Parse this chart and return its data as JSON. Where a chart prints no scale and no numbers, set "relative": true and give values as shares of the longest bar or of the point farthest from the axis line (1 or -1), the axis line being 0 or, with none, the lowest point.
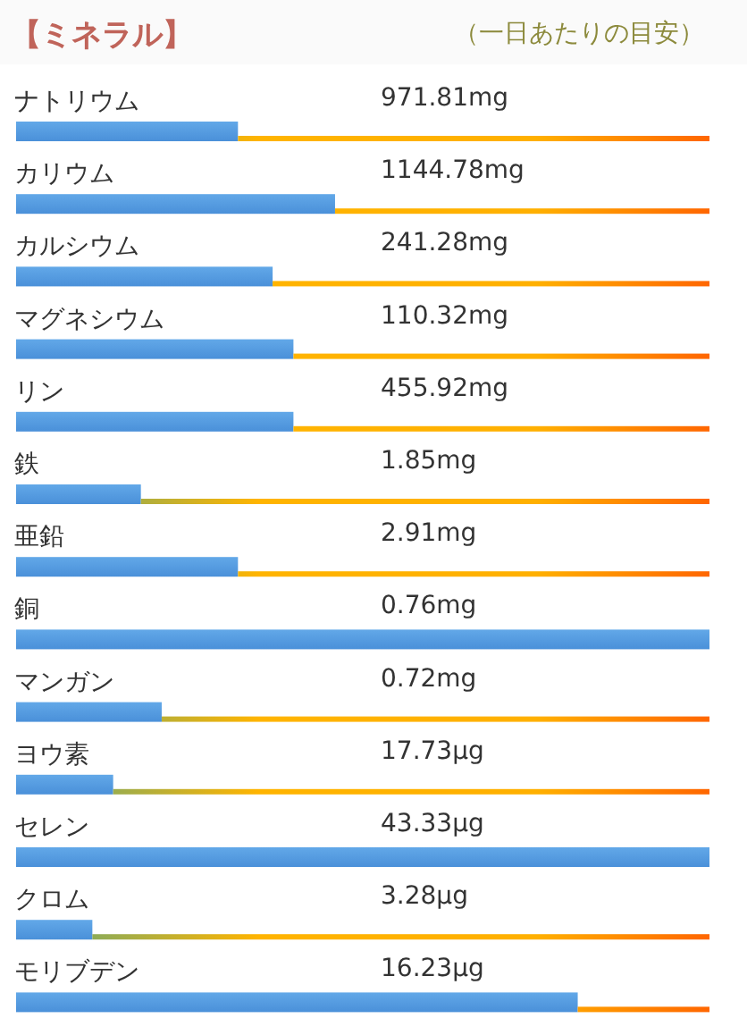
{
  "chart_data": {
    "type": "bar",
    "orientation": "horizontal",
    "stacked": true,
    "relative": true,
    "title": "【ミネラル】",
    "subtitle": "（一日あたりの目安）",
    "categories": [
      "ナトリウム",
      "カリウム",
      "カルシウム",
      "マグネシウム",
      "リン",
      "鉄",
      "亜鉛",
      "銅",
      "マンガン",
      "ヨウ素",
      "セレン",
      "クロム",
      "モリブデン"
    ],
    "series": [
      {
        "color": "#4a90d9",
        "values": [
          0.32,
          0.46,
          0.37,
          0.4,
          0.4,
          0.18,
          0.32,
          1,
          0.21,
          0.14,
          1,
          0.11,
          0.81
        ]
      },
      {
        "color": "#ffb400",
        "values": [
          0.68,
          0.54,
          0.63,
          0.6,
          0.6,
          0.82,
          0.68,
          0,
          0.79,
          0.86,
          0,
          0.89,
          0.19
        ]
      }
    ],
    "annotations": [
      "971.81mg",
      "1144.78mg",
      "241.28mg",
      "110.32mg",
      "455.92mg",
      "1.85mg",
      "2.91mg",
      "0.76mg",
      "0.72mg",
      "17.73μg",
      "43.33μg",
      "3.28μg",
      "16.23μg"
    ]
  }
}
